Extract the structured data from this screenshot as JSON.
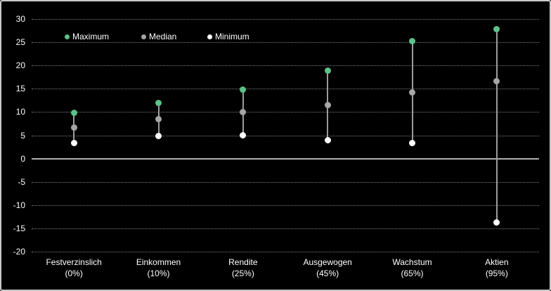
{
  "chart_data": {
    "type": "scatter",
    "title": "",
    "categories": [
      {
        "label": "Festverzinslich",
        "allocation": "(0%)"
      },
      {
        "label": "Einkommen",
        "allocation": "(10%)"
      },
      {
        "label": "Rendite",
        "allocation": "(25%)"
      },
      {
        "label": "Ausgewogen",
        "allocation": "(45%)"
      },
      {
        "label": "Wachstum",
        "allocation": "(65%)"
      },
      {
        "label": "Aktien",
        "allocation": "(95%)"
      }
    ],
    "series": [
      {
        "name": "Maximum",
        "color": "#5cc287",
        "values": [
          9.9,
          11.9,
          14.8,
          18.9,
          25.2,
          27.8
        ]
      },
      {
        "name": "Median",
        "color": "#a6a6a6",
        "values": [
          6.7,
          8.4,
          10.0,
          11.5,
          14.2,
          16.6
        ]
      },
      {
        "name": "Minimum",
        "color": "#ffffff",
        "values": [
          3.3,
          4.9,
          5.0,
          4.0,
          3.3,
          -13.8
        ]
      }
    ],
    "ylim": [
      -20,
      30
    ],
    "ytick_step": 5,
    "ytick_labels": [
      "30",
      "25",
      "20",
      "15",
      "10",
      "5",
      "0",
      "-5",
      "-10",
      "-15",
      "-20"
    ],
    "grid": "horizontal-dotted",
    "zero_line": true,
    "legend_position": "top-left",
    "colors": {
      "background": "#000000",
      "text": "#ffffff",
      "gridline": "#7f7f7f",
      "zero_line": "#b0b0b0",
      "range_line": "#9c9c9c",
      "frame_border": "#c8c8c8"
    }
  }
}
